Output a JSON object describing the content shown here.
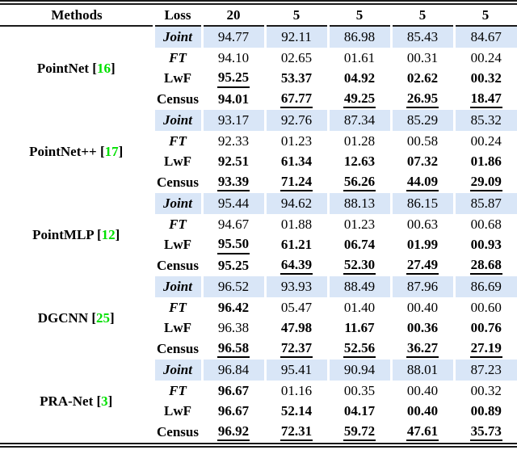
{
  "header": {
    "methods": "Methods",
    "loss": "Loss",
    "columns": [
      "20",
      "5",
      "5",
      "5",
      "5"
    ]
  },
  "colors": {
    "highlight_row_bg": "#d9e6f7",
    "citation_green": "#00e000"
  },
  "groups": [
    {
      "method": "PointNet",
      "citation": "16",
      "rows": [
        {
          "loss": "Joint",
          "italic": true,
          "highlight": true,
          "values": [
            {
              "v": "94.77"
            },
            {
              "v": "92.11"
            },
            {
              "v": "86.98"
            },
            {
              "v": "85.43"
            },
            {
              "v": "84.67"
            }
          ]
        },
        {
          "loss": "FT",
          "italic": true,
          "values": [
            {
              "v": "94.10"
            },
            {
              "v": "02.65"
            },
            {
              "v": "01.61"
            },
            {
              "v": "00.31"
            },
            {
              "v": "00.24"
            }
          ]
        },
        {
          "loss": "LwF",
          "values": [
            {
              "v": "95.25",
              "b": 1,
              "u": 1
            },
            {
              "v": "53.37",
              "b": 1
            },
            {
              "v": "04.92",
              "b": 1
            },
            {
              "v": "02.62",
              "b": 1
            },
            {
              "v": "00.32",
              "b": 1
            }
          ]
        },
        {
          "loss": "Census",
          "values": [
            {
              "v": "94.01",
              "b": 1
            },
            {
              "v": "67.77",
              "b": 1,
              "u": 1
            },
            {
              "v": "49.25",
              "b": 1,
              "u": 1
            },
            {
              "v": "26.95",
              "b": 1,
              "u": 1
            },
            {
              "v": "18.47",
              "b": 1,
              "u": 1
            }
          ]
        }
      ]
    },
    {
      "method": "PointNet++",
      "citation": "17",
      "rows": [
        {
          "loss": "Joint",
          "italic": true,
          "highlight": true,
          "values": [
            {
              "v": "93.17"
            },
            {
              "v": "92.76"
            },
            {
              "v": "87.34"
            },
            {
              "v": "85.29"
            },
            {
              "v": "85.32"
            }
          ]
        },
        {
          "loss": "FT",
          "italic": true,
          "values": [
            {
              "v": "92.33"
            },
            {
              "v": "01.23"
            },
            {
              "v": "01.28"
            },
            {
              "v": "00.58"
            },
            {
              "v": "00.24"
            }
          ]
        },
        {
          "loss": "LwF",
          "values": [
            {
              "v": "92.51",
              "b": 1
            },
            {
              "v": "61.34",
              "b": 1
            },
            {
              "v": "12.63",
              "b": 1
            },
            {
              "v": "07.32",
              "b": 1
            },
            {
              "v": "01.86",
              "b": 1
            }
          ]
        },
        {
          "loss": "Census",
          "values": [
            {
              "v": "93.39",
              "b": 1,
              "u": 1
            },
            {
              "v": "71.24",
              "b": 1,
              "u": 1
            },
            {
              "v": "56.26",
              "b": 1,
              "u": 1
            },
            {
              "v": "44.09",
              "b": 1,
              "u": 1
            },
            {
              "v": "29.09",
              "b": 1,
              "u": 1
            }
          ]
        }
      ]
    },
    {
      "method": "PointMLP",
      "citation": "12",
      "rows": [
        {
          "loss": "Joint",
          "italic": true,
          "highlight": true,
          "values": [
            {
              "v": "95.44"
            },
            {
              "v": "94.62"
            },
            {
              "v": "88.13"
            },
            {
              "v": "86.15"
            },
            {
              "v": "85.87"
            }
          ]
        },
        {
          "loss": "FT",
          "italic": true,
          "values": [
            {
              "v": "94.67"
            },
            {
              "v": "01.88"
            },
            {
              "v": "01.23"
            },
            {
              "v": "00.63"
            },
            {
              "v": "00.68"
            }
          ]
        },
        {
          "loss": "LwF",
          "values": [
            {
              "v": "95.50",
              "b": 1,
              "u": 1
            },
            {
              "v": "61.21",
              "b": 1
            },
            {
              "v": "06.74",
              "b": 1
            },
            {
              "v": "01.99",
              "b": 1
            },
            {
              "v": "00.93",
              "b": 1
            }
          ]
        },
        {
          "loss": "Census",
          "values": [
            {
              "v": "95.25",
              "b": 1
            },
            {
              "v": "64.39",
              "b": 1,
              "u": 1
            },
            {
              "v": "52.30",
              "b": 1,
              "u": 1
            },
            {
              "v": "27.49",
              "b": 1,
              "u": 1
            },
            {
              "v": "28.68",
              "b": 1,
              "u": 1
            }
          ]
        }
      ]
    },
    {
      "method": "DGCNN",
      "citation": "25",
      "rows": [
        {
          "loss": "Joint",
          "italic": true,
          "highlight": true,
          "values": [
            {
              "v": "96.52"
            },
            {
              "v": "93.93"
            },
            {
              "v": "88.49"
            },
            {
              "v": "87.96"
            },
            {
              "v": "86.69"
            }
          ]
        },
        {
          "loss": "FT",
          "italic": true,
          "values": [
            {
              "v": "96.42",
              "b": 1
            },
            {
              "v": "05.47"
            },
            {
              "v": "01.40"
            },
            {
              "v": "00.40"
            },
            {
              "v": "00.60"
            }
          ]
        },
        {
          "loss": "LwF",
          "values": [
            {
              "v": "96.38"
            },
            {
              "v": "47.98",
              "b": 1
            },
            {
              "v": "11.67",
              "b": 1
            },
            {
              "v": "00.36",
              "b": 1
            },
            {
              "v": "00.76",
              "b": 1
            }
          ]
        },
        {
          "loss": "Census",
          "values": [
            {
              "v": "96.58",
              "b": 1,
              "u": 1
            },
            {
              "v": "72.37",
              "b": 1,
              "u": 1
            },
            {
              "v": "52.56",
              "b": 1,
              "u": 1
            },
            {
              "v": "36.27",
              "b": 1,
              "u": 1
            },
            {
              "v": "27.19",
              "b": 1,
              "u": 1
            }
          ]
        }
      ]
    },
    {
      "method": "PRA-Net",
      "citation": "3",
      "rows": [
        {
          "loss": "Joint",
          "italic": true,
          "highlight": true,
          "values": [
            {
              "v": "96.84"
            },
            {
              "v": "95.41"
            },
            {
              "v": "90.94"
            },
            {
              "v": "88.01"
            },
            {
              "v": "87.23"
            }
          ]
        },
        {
          "loss": "FT",
          "italic": true,
          "values": [
            {
              "v": "96.67",
              "b": 1
            },
            {
              "v": "01.16"
            },
            {
              "v": "00.35"
            },
            {
              "v": "00.40"
            },
            {
              "v": "00.32"
            }
          ]
        },
        {
          "loss": "LwF",
          "values": [
            {
              "v": "96.67",
              "b": 1
            },
            {
              "v": "52.14",
              "b": 1
            },
            {
              "v": "04.17",
              "b": 1
            },
            {
              "v": "00.40",
              "b": 1
            },
            {
              "v": "00.89",
              "b": 1
            }
          ]
        },
        {
          "loss": "Census",
          "values": [
            {
              "v": "96.92",
              "b": 1,
              "u": 1
            },
            {
              "v": "72.31",
              "b": 1,
              "u": 1
            },
            {
              "v": "59.72",
              "b": 1,
              "u": 1
            },
            {
              "v": "47.61",
              "b": 1,
              "u": 1
            },
            {
              "v": "35.73",
              "b": 1,
              "u": 1
            }
          ]
        }
      ]
    }
  ]
}
